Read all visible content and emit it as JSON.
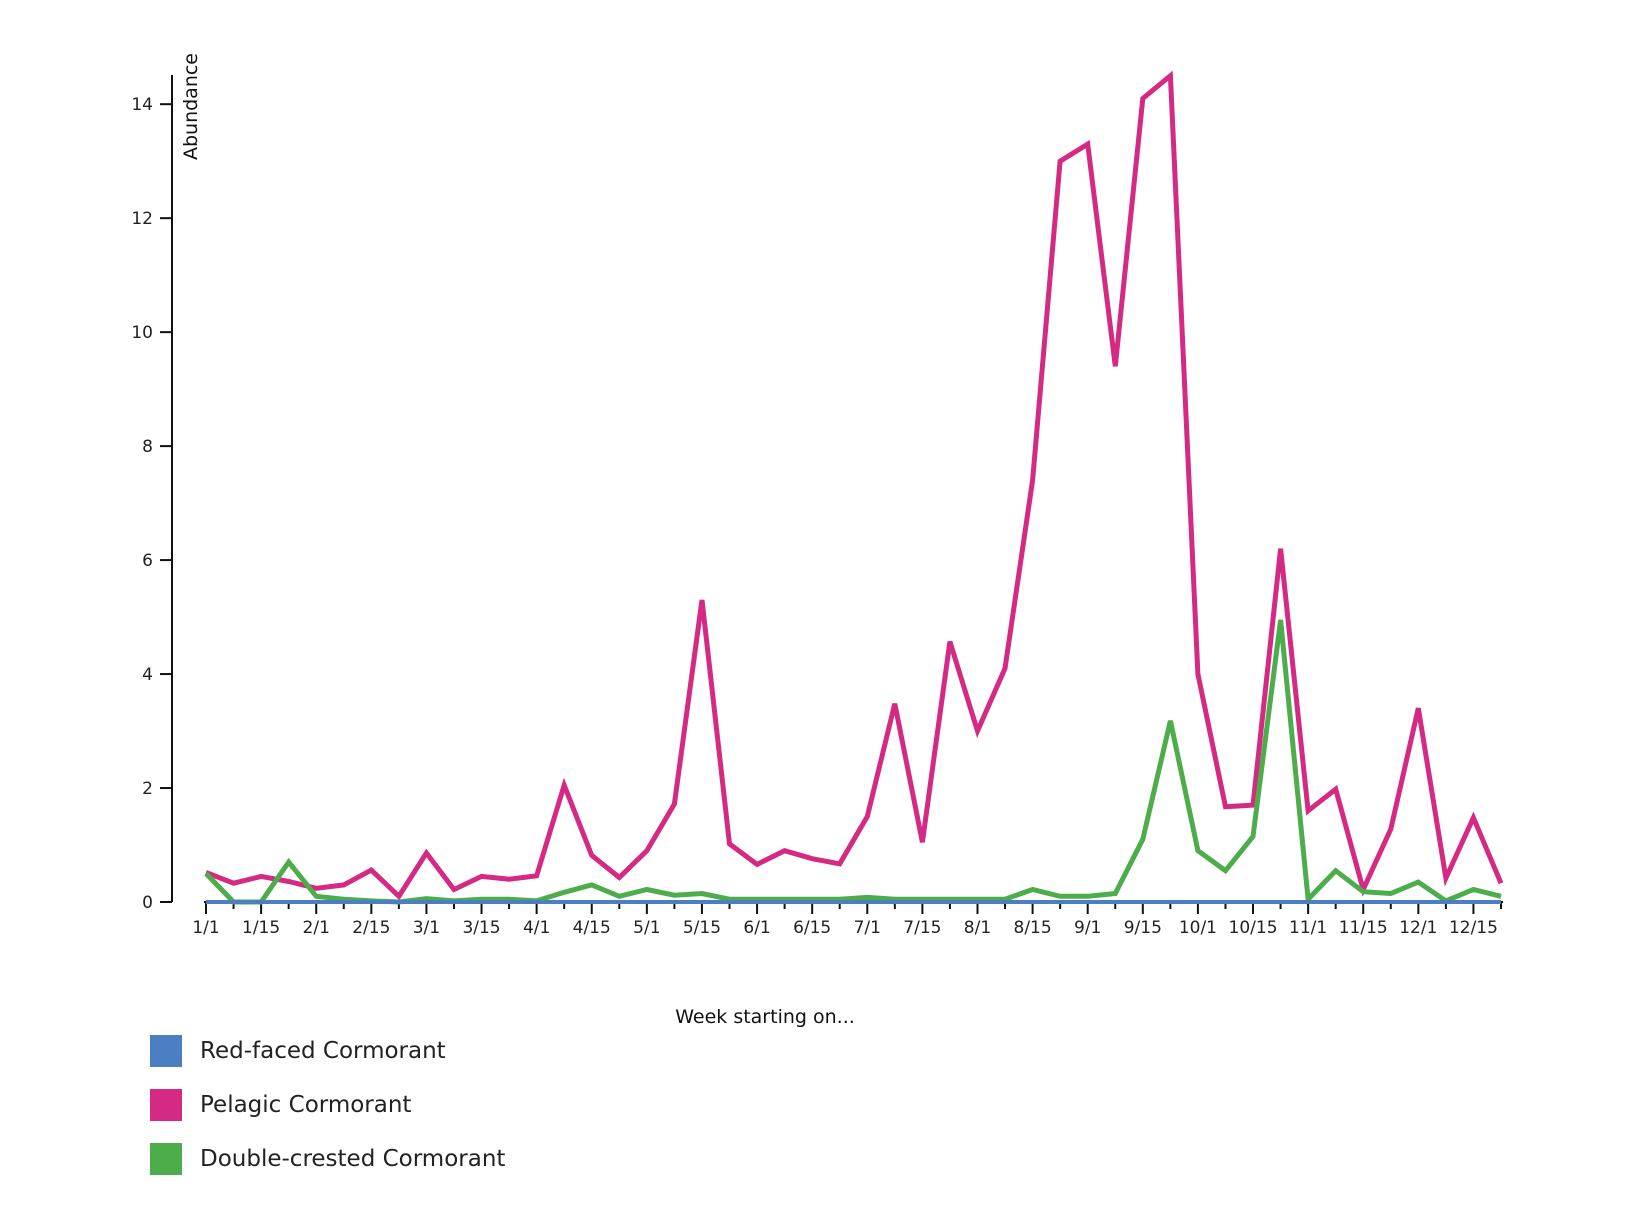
{
  "chart_data": {
    "type": "line",
    "title": "",
    "xlabel": "Week starting on...",
    "ylabel": "Abundance",
    "ylim": [
      0,
      14.6
    ],
    "yticks": [
      0,
      2,
      4,
      6,
      8,
      10,
      12,
      14
    ],
    "x_tick_labels": [
      "1/1",
      "1/15",
      "2/1",
      "2/15",
      "3/1",
      "3/15",
      "4/1",
      "4/15",
      "5/1",
      "5/15",
      "6/1",
      "6/15",
      "7/1",
      "7/15",
      "8/1",
      "8/15",
      "9/1",
      "9/15",
      "10/1",
      "10/15",
      "11/1",
      "11/15",
      "12/1",
      "12/15"
    ],
    "weeks_per_month": 4,
    "grid": false,
    "legend_position": "bottom-left",
    "series": [
      {
        "name": "Red-faced Cormorant",
        "color": "#4a7fc1",
        "values": [
          0,
          0,
          0,
          0,
          0,
          0,
          0,
          0,
          0,
          0,
          0,
          0,
          0,
          0,
          0,
          0,
          0,
          0,
          0,
          0,
          0,
          0,
          0,
          0,
          0,
          0,
          0,
          0,
          0,
          0,
          0,
          0,
          0,
          0,
          0,
          0,
          0,
          0,
          0,
          0,
          0,
          0,
          0,
          0,
          0,
          0,
          0,
          0
        ]
      },
      {
        "name": "Pelagic Cormorant",
        "color": "#d42a84",
        "values": [
          0.52,
          0.33,
          0.45,
          0.36,
          0.24,
          0.3,
          0.56,
          0.1,
          0.86,
          0.22,
          0.45,
          0.4,
          0.46,
          2.05,
          0.82,
          0.43,
          0.9,
          1.72,
          5.3,
          1.02,
          0.66,
          0.9,
          0.76,
          0.67,
          1.5,
          3.48,
          1.05,
          4.57,
          3.0,
          4.1,
          7.4,
          13.0,
          13.3,
          9.4,
          14.1,
          14.5,
          4.0,
          1.67,
          1.7,
          6.2,
          1.6,
          1.98,
          0.22,
          1.28,
          3.4,
          0.42,
          1.48,
          0.33
        ]
      },
      {
        "name": "Double-crested Cormorant",
        "color": "#4dad4a",
        "values": [
          0.5,
          0.0,
          0.0,
          0.7,
          0.1,
          0.05,
          0.02,
          0.0,
          0.06,
          0.02,
          0.05,
          0.05,
          0.02,
          0.17,
          0.3,
          0.1,
          0.22,
          0.12,
          0.15,
          0.05,
          0.05,
          0.05,
          0.05,
          0.05,
          0.08,
          0.05,
          0.05,
          0.05,
          0.05,
          0.05,
          0.22,
          0.1,
          0.1,
          0.15,
          1.1,
          3.18,
          0.9,
          0.55,
          1.15,
          4.95,
          0.05,
          0.55,
          0.18,
          0.15,
          0.35,
          0.02,
          0.22,
          0.1
        ]
      }
    ]
  }
}
